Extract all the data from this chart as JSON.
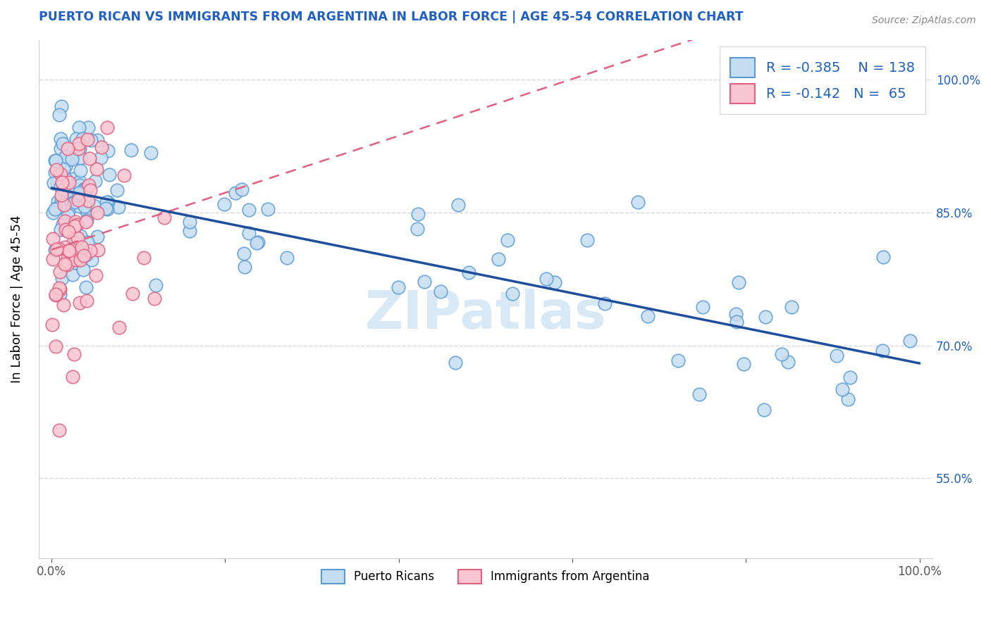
{
  "title": "PUERTO RICAN VS IMMIGRANTS FROM ARGENTINA IN LABOR FORCE | AGE 45-54 CORRELATION CHART",
  "source": "Source: ZipAtlas.com",
  "ylabel": "In Labor Force | Age 45-54",
  "watermark": "ZIPatlas",
  "legend_blue_R": "-0.385",
  "legend_blue_N": "138",
  "legend_pink_R": "-0.142",
  "legend_pink_N": "65",
  "label_blue": "Puerto Ricans",
  "label_pink": "Immigrants from Argentina",
  "blue_fill": "#c5ddf0",
  "blue_edge": "#5b9bd5",
  "pink_fill": "#f9c5d0",
  "pink_edge": "#e06080",
  "blue_line": "#1f4e9c",
  "pink_line": "#e06080",
  "title_color": "#2060c0",
  "tick_color_right": "#2060c0",
  "grid_color": "#d8d8d8",
  "xlim": [
    -0.015,
    1.015
  ],
  "ylim": [
    0.46,
    1.045
  ],
  "x_ticks": [
    0.0,
    0.2,
    0.4,
    0.6,
    0.8,
    1.0
  ],
  "y_ticks": [
    0.55,
    0.7,
    0.85,
    1.0
  ],
  "y_tick_labels": [
    "55.0%",
    "70.0%",
    "85.0%",
    "100.0%"
  ]
}
